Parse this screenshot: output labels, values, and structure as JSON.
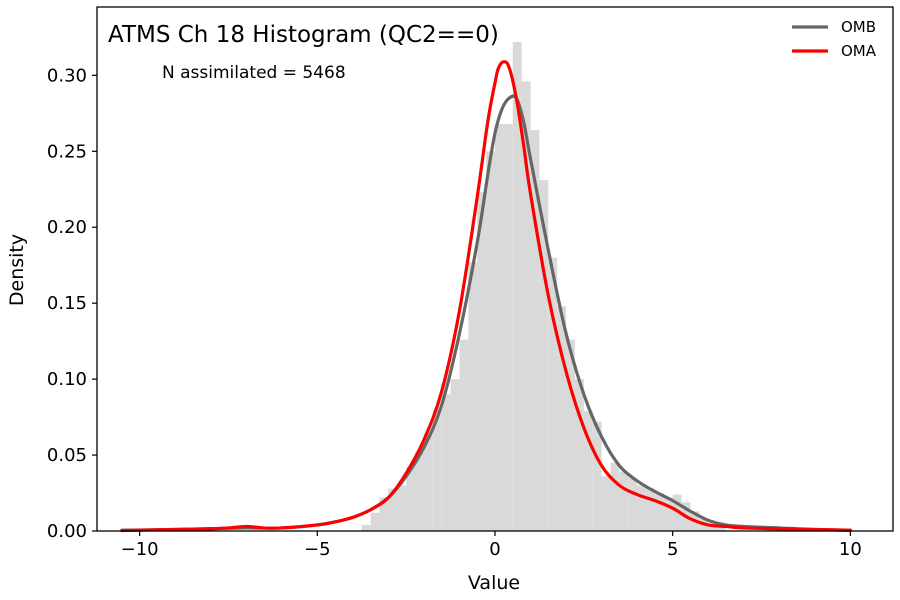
{
  "chart_data": {
    "type": "histogram+kde",
    "title": "ATMS Ch 18 Histogram (QC2==0)",
    "annotation": "N assimilated = 5468",
    "xlabel": "Value",
    "ylabel": "Density",
    "xlim": [
      -11.2,
      11.2
    ],
    "ylim": [
      0,
      0.345
    ],
    "xticks": [
      -10,
      -5,
      0,
      5,
      10
    ],
    "xtick_labels": [
      "−10",
      "−5",
      "0",
      "5",
      "10"
    ],
    "yticks": [
      0.0,
      0.05,
      0.1,
      0.15,
      0.2,
      0.25,
      0.3
    ],
    "ytick_labels": [
      "0.00",
      "0.05",
      "0.10",
      "0.15",
      "0.20",
      "0.25",
      "0.30"
    ],
    "grid": false,
    "legend_position": "top-right",
    "histogram": {
      "color": "#d9d9d9",
      "bins": [
        {
          "x0": -3.75,
          "x1": -3.5,
          "v": 0.004
        },
        {
          "x0": -3.5,
          "x1": -3.25,
          "v": 0.012
        },
        {
          "x0": -3.25,
          "x1": -3.0,
          "v": 0.022
        },
        {
          "x0": -3.0,
          "x1": -2.75,
          "v": 0.028
        },
        {
          "x0": -2.75,
          "x1": -2.5,
          "v": 0.03
        },
        {
          "x0": -2.5,
          "x1": -2.25,
          "v": 0.042
        },
        {
          "x0": -2.25,
          "x1": -2.0,
          "v": 0.052
        },
        {
          "x0": -2.0,
          "x1": -1.75,
          "v": 0.064
        },
        {
          "x0": -1.75,
          "x1": -1.5,
          "v": 0.08
        },
        {
          "x0": -1.5,
          "x1": -1.25,
          "v": 0.09
        },
        {
          "x0": -1.25,
          "x1": -1.0,
          "v": 0.1
        },
        {
          "x0": -1.0,
          "x1": -0.75,
          "v": 0.126
        },
        {
          "x0": -0.75,
          "x1": -0.5,
          "v": 0.177
        },
        {
          "x0": -0.5,
          "x1": -0.25,
          "v": 0.223
        },
        {
          "x0": -0.25,
          "x1": 0.0,
          "v": 0.25
        },
        {
          "x0": 0.0,
          "x1": 0.25,
          "v": 0.268
        },
        {
          "x0": 0.25,
          "x1": 0.5,
          "v": 0.268
        },
        {
          "x0": 0.5,
          "x1": 0.75,
          "v": 0.322
        },
        {
          "x0": 0.75,
          "x1": 1.0,
          "v": 0.296
        },
        {
          "x0": 1.0,
          "x1": 1.25,
          "v": 0.264
        },
        {
          "x0": 1.25,
          "x1": 1.5,
          "v": 0.231
        },
        {
          "x0": 1.5,
          "x1": 1.75,
          "v": 0.18
        },
        {
          "x0": 1.75,
          "x1": 2.0,
          "v": 0.148
        },
        {
          "x0": 2.0,
          "x1": 2.25,
          "v": 0.126
        },
        {
          "x0": 2.25,
          "x1": 2.5,
          "v": 0.1
        },
        {
          "x0": 2.5,
          "x1": 2.75,
          "v": 0.079
        },
        {
          "x0": 2.75,
          "x1": 3.0,
          "v": 0.072
        },
        {
          "x0": 3.0,
          "x1": 3.25,
          "v": 0.036
        },
        {
          "x0": 3.25,
          "x1": 3.5,
          "v": 0.045
        },
        {
          "x0": 3.5,
          "x1": 3.75,
          "v": 0.039
        },
        {
          "x0": 3.75,
          "x1": 4.0,
          "v": 0.035
        },
        {
          "x0": 4.0,
          "x1": 4.25,
          "v": 0.03
        },
        {
          "x0": 4.25,
          "x1": 4.5,
          "v": 0.028
        },
        {
          "x0": 4.5,
          "x1": 4.75,
          "v": 0.025
        },
        {
          "x0": 4.75,
          "x1": 5.0,
          "v": 0.022
        },
        {
          "x0": 5.0,
          "x1": 5.25,
          "v": 0.024
        },
        {
          "x0": 5.25,
          "x1": 5.5,
          "v": 0.019
        },
        {
          "x0": 5.5,
          "x1": 5.75,
          "v": 0.013
        },
        {
          "x0": 5.75,
          "x1": 6.0,
          "v": 0.008
        },
        {
          "x0": 6.0,
          "x1": 6.25,
          "v": 0.005
        },
        {
          "x0": 6.25,
          "x1": 6.5,
          "v": 0.003
        }
      ]
    },
    "series": [
      {
        "name": "OMB",
        "color": "#666666",
        "points": [
          [
            -10.5,
            0.0005
          ],
          [
            -9.0,
            0.001
          ],
          [
            -8.0,
            0.0015
          ],
          [
            -7.0,
            0.002
          ],
          [
            -6.0,
            0.002
          ],
          [
            -5.0,
            0.004
          ],
          [
            -4.5,
            0.006
          ],
          [
            -4.0,
            0.009
          ],
          [
            -3.5,
            0.014
          ],
          [
            -3.0,
            0.022
          ],
          [
            -2.5,
            0.036
          ],
          [
            -2.0,
            0.055
          ],
          [
            -1.5,
            0.083
          ],
          [
            -1.0,
            0.13
          ],
          [
            -0.5,
            0.19
          ],
          [
            -0.2,
            0.235
          ],
          [
            0.0,
            0.262
          ],
          [
            0.2,
            0.278
          ],
          [
            0.4,
            0.285
          ],
          [
            0.6,
            0.285
          ],
          [
            0.8,
            0.27
          ],
          [
            1.0,
            0.245
          ],
          [
            1.5,
            0.185
          ],
          [
            2.0,
            0.13
          ],
          [
            2.5,
            0.09
          ],
          [
            3.0,
            0.062
          ],
          [
            3.5,
            0.043
          ],
          [
            4.0,
            0.033
          ],
          [
            4.5,
            0.026
          ],
          [
            5.0,
            0.02
          ],
          [
            5.5,
            0.013
          ],
          [
            6.0,
            0.007
          ],
          [
            6.5,
            0.004
          ],
          [
            7.0,
            0.003
          ],
          [
            8.0,
            0.002
          ],
          [
            9.0,
            0.001
          ],
          [
            10.0,
            0.0005
          ]
        ]
      },
      {
        "name": "OMA",
        "color": "#ff0000",
        "points": [
          [
            -10.5,
            0.0003
          ],
          [
            -9.0,
            0.001
          ],
          [
            -8.0,
            0.0015
          ],
          [
            -7.5,
            0.002
          ],
          [
            -7.0,
            0.003
          ],
          [
            -6.5,
            0.002
          ],
          [
            -6.0,
            0.002
          ],
          [
            -5.0,
            0.004
          ],
          [
            -4.5,
            0.006
          ],
          [
            -4.0,
            0.009
          ],
          [
            -3.5,
            0.014
          ],
          [
            -3.0,
            0.022
          ],
          [
            -2.5,
            0.038
          ],
          [
            -2.0,
            0.06
          ],
          [
            -1.5,
            0.092
          ],
          [
            -1.0,
            0.145
          ],
          [
            -0.5,
            0.22
          ],
          [
            -0.2,
            0.27
          ],
          [
            0.0,
            0.295
          ],
          [
            0.1,
            0.305
          ],
          [
            0.25,
            0.309
          ],
          [
            0.4,
            0.305
          ],
          [
            0.6,
            0.285
          ],
          [
            0.8,
            0.255
          ],
          [
            1.0,
            0.222
          ],
          [
            1.5,
            0.155
          ],
          [
            2.0,
            0.105
          ],
          [
            2.5,
            0.068
          ],
          [
            3.0,
            0.043
          ],
          [
            3.5,
            0.03
          ],
          [
            4.0,
            0.024
          ],
          [
            4.5,
            0.02
          ],
          [
            5.0,
            0.015
          ],
          [
            5.5,
            0.008
          ],
          [
            6.0,
            0.004
          ],
          [
            6.5,
            0.003
          ],
          [
            7.0,
            0.002
          ],
          [
            8.0,
            0.0015
          ],
          [
            9.0,
            0.001
          ],
          [
            10.0,
            0.0005
          ]
        ]
      }
    ]
  }
}
